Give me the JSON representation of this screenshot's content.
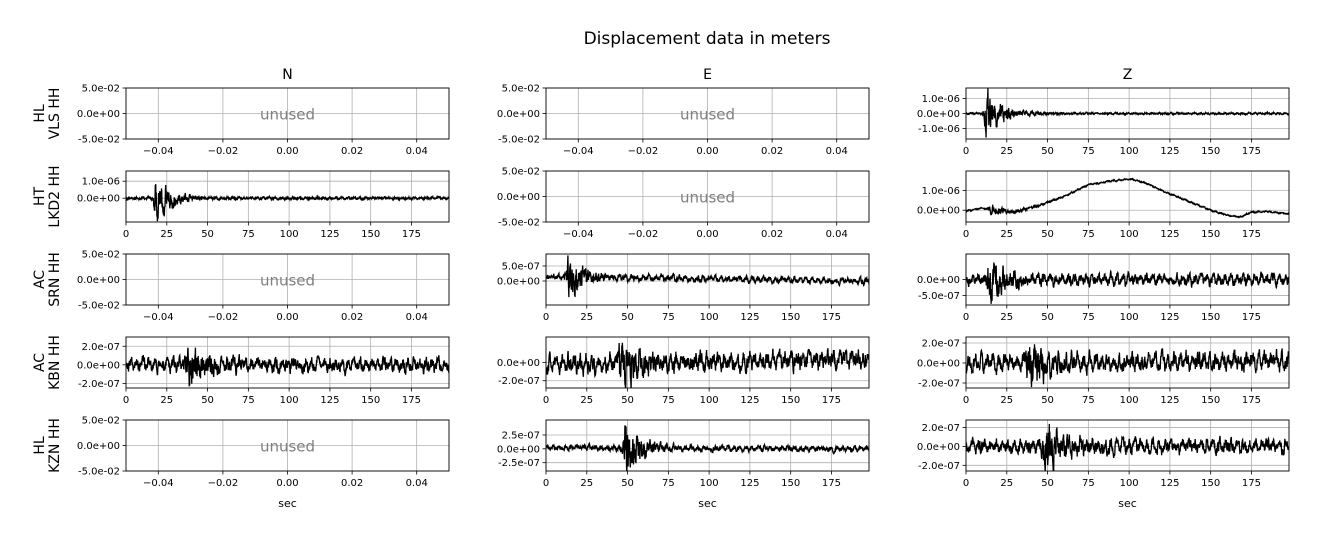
{
  "chart_data": {
    "type": "line",
    "title": "Displacement data in meters",
    "columns": [
      "N",
      "E",
      "Z"
    ],
    "rows": [
      {
        "network": "HL",
        "station": "VLS HH"
      },
      {
        "network": "HT",
        "station": "LKD2 HH"
      },
      {
        "network": "AC",
        "station": "SRN HH"
      },
      {
        "network": "AC",
        "station": "KBN HH"
      },
      {
        "network": "HL",
        "station": "KZN HH"
      }
    ],
    "xlabel": "sec",
    "grid": true,
    "unused_label": "unused",
    "empty_axes": {
      "xlim": [
        -0.05,
        0.05
      ],
      "xticks": [
        -0.04,
        -0.02,
        0.0,
        0.02,
        0.04
      ],
      "xtick_labels": [
        "−0.04",
        "−0.02",
        "0.00",
        "0.02",
        "0.04"
      ],
      "ylim": [
        -0.05,
        0.05
      ],
      "yticks": [
        0.05,
        0.0,
        -0.05
      ],
      "ytick_labels": [
        "5.0e-02",
        "0.0e+00",
        "-5.0e-02"
      ]
    },
    "trace_xlim": [
      0,
      198
    ],
    "trace_xticks": [
      0,
      25,
      50,
      75,
      100,
      125,
      150,
      175
    ],
    "trace_xtick_labels": [
      "0",
      "25",
      "50",
      "75",
      "100",
      "125",
      "150",
      "175"
    ],
    "panels": [
      {
        "row": 0,
        "col": 0,
        "unused": true
      },
      {
        "row": 0,
        "col": 1,
        "unused": true
      },
      {
        "row": 0,
        "col": 2,
        "unused": false,
        "ylim": [
          -1.7e-06,
          1.7e-06
        ],
        "yticks": [
          1e-06,
          0,
          -1e-06
        ],
        "ytick_labels": [
          "1.0e-06",
          "0.0e+00",
          "-1.0e-06"
        ],
        "burst_time": 12,
        "burst_amplitude": 1.5e-06,
        "noise_amplitude": 5e-08,
        "trend": [
          [
            0,
            0
          ],
          [
            198,
            0
          ]
        ]
      },
      {
        "row": 1,
        "col": 0,
        "unused": false,
        "ylim": [
          -1.4e-06,
          1.6e-06
        ],
        "yticks": [
          1e-06,
          0
        ],
        "ytick_labels": [
          "1.0e-06",
          "0.0e+00"
        ],
        "burst_time": 18,
        "burst_amplitude": 1.3e-06,
        "noise_amplitude": 6e-08,
        "trend": [
          [
            0,
            0
          ],
          [
            198,
            0
          ]
        ]
      },
      {
        "row": 1,
        "col": 1,
        "unused": true
      },
      {
        "row": 1,
        "col": 2,
        "unused": false,
        "ylim": [
          -6e-07,
          2e-06
        ],
        "yticks": [
          1e-06,
          0
        ],
        "ytick_labels": [
          "1.0e-06",
          "0.0e+00"
        ],
        "burst_time": 15,
        "burst_amplitude": 2.8e-07,
        "noise_amplitude": 3e-08,
        "trend": [
          [
            0,
            -5e-08
          ],
          [
            10,
            1e-07
          ],
          [
            20,
            0
          ],
          [
            30,
            -8e-08
          ],
          [
            45,
            2.5e-07
          ],
          [
            60,
            7e-07
          ],
          [
            75,
            1.3e-06
          ],
          [
            90,
            1.5e-06
          ],
          [
            100,
            1.6e-06
          ],
          [
            110,
            1.4e-06
          ],
          [
            120,
            1e-06
          ],
          [
            135,
            5e-07
          ],
          [
            150,
            0
          ],
          [
            160,
            -2.5e-07
          ],
          [
            168,
            -3.5e-07
          ],
          [
            175,
            -1e-07
          ],
          [
            185,
            -7e-08
          ],
          [
            198,
            -2e-07
          ]
        ]
      },
      {
        "row": 2,
        "col": 0,
        "unused": true
      },
      {
        "row": 2,
        "col": 1,
        "unused": false,
        "ylim": [
          -8e-07,
          9e-07
        ],
        "yticks": [
          5e-07,
          0
        ],
        "ytick_labels": [
          "5.0e-07",
          "0.0e+00"
        ],
        "burst_time": 13,
        "burst_amplitude": 6.5e-07,
        "noise_amplitude": 8e-08,
        "trend": [
          [
            0,
            1.5e-07
          ],
          [
            198,
            0
          ]
        ]
      },
      {
        "row": 2,
        "col": 2,
        "unused": false,
        "ylim": [
          -8e-07,
          8e-07
        ],
        "yticks": [
          0,
          -5e-07
        ],
        "ytick_labels": [
          "0.0e+00",
          "-5.0e-07"
        ],
        "burst_time": 14,
        "burst_amplitude": 6e-07,
        "noise_amplitude": 1.4e-07,
        "trend": [
          [
            0,
            0
          ],
          [
            198,
            0
          ]
        ]
      },
      {
        "row": 3,
        "col": 0,
        "unused": false,
        "ylim": [
          -2.5e-07,
          3e-07
        ],
        "yticks": [
          2e-07,
          0,
          -2e-07
        ],
        "ytick_labels": [
          "2.0e-07",
          "0.0e+00",
          "-2.0e-07"
        ],
        "burst_time": 38,
        "burst_amplitude": 2e-07,
        "noise_amplitude": 6e-08,
        "trend": [
          [
            0,
            0
          ],
          [
            198,
            0
          ]
        ]
      },
      {
        "row": 3,
        "col": 1,
        "unused": false,
        "ylim": [
          -2.8e-07,
          2.8e-07
        ],
        "yticks": [
          0,
          -2e-07
        ],
        "ytick_labels": [
          "0.0e+00",
          "-2.0e-07"
        ],
        "burst_time": 45,
        "burst_amplitude": 2.2e-07,
        "noise_amplitude": 8e-08,
        "trend": [
          [
            0,
            -3e-08
          ],
          [
            198,
            5e-08
          ]
        ]
      },
      {
        "row": 3,
        "col": 2,
        "unused": false,
        "ylim": [
          -2.5e-07,
          2.6e-07
        ],
        "yticks": [
          2e-07,
          0,
          -2e-07
        ],
        "ytick_labels": [
          "2.0e-07",
          "0.0e+00",
          "-2.0e-07"
        ],
        "burst_time": 38,
        "burst_amplitude": 2e-07,
        "noise_amplitude": 7e-08,
        "trend": [
          [
            0,
            0
          ],
          [
            198,
            2e-08
          ]
        ]
      },
      {
        "row": 4,
        "col": 0,
        "unused": true
      },
      {
        "row": 4,
        "col": 1,
        "unused": false,
        "ylim": [
          -4e-07,
          5.2e-07
        ],
        "yticks": [
          2.5e-07,
          0,
          -2.5e-07
        ],
        "ytick_labels": [
          "2.5e-07",
          "0.0e+00",
          "-2.5e-07"
        ],
        "burst_time": 48,
        "burst_amplitude": 4.8e-07,
        "noise_amplitude": 4e-08,
        "trend": [
          [
            0,
            2e-08
          ],
          [
            198,
            0
          ]
        ]
      },
      {
        "row": 4,
        "col": 2,
        "unused": false,
        "ylim": [
          -2.6e-07,
          2.8e-07
        ],
        "yticks": [
          2e-07,
          0,
          -2e-07
        ],
        "ytick_labels": [
          "2.0e-07",
          "0.0e+00",
          "-2.0e-07"
        ],
        "burst_time": 48,
        "burst_amplitude": 2.2e-07,
        "noise_amplitude": 6e-08,
        "trend": [
          [
            0,
            0
          ],
          [
            198,
            0
          ]
        ]
      }
    ]
  }
}
